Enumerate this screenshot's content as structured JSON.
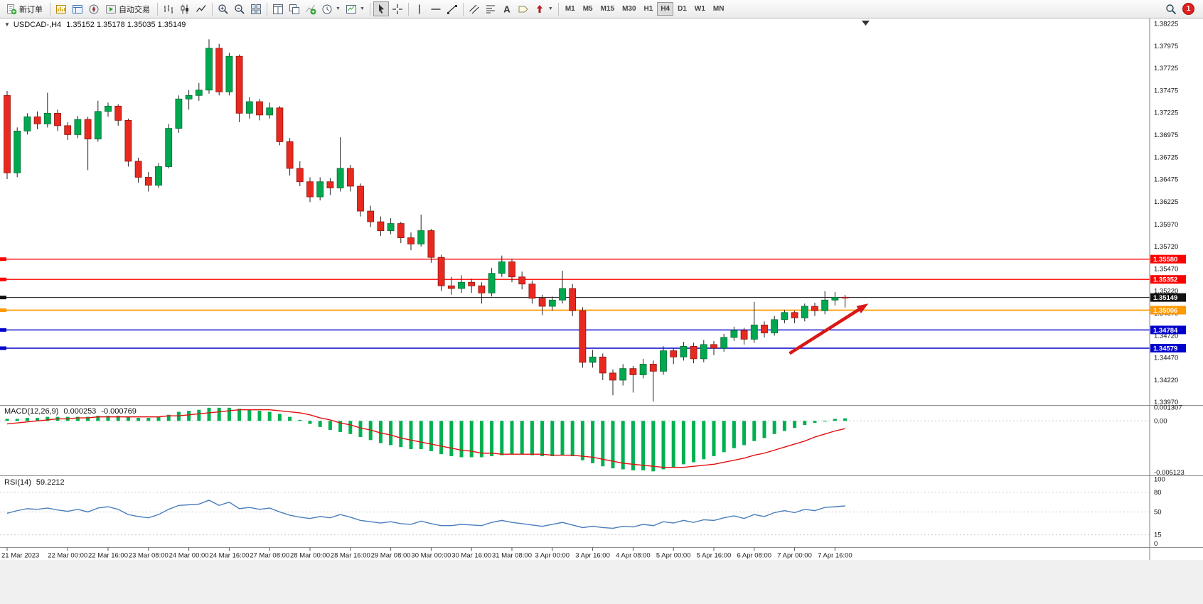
{
  "toolbar": {
    "new_order_label": "新订单",
    "auto_trading_label": "自动交易",
    "timeframes": [
      "M1",
      "M5",
      "M15",
      "M30",
      "H1",
      "H4",
      "D1",
      "W1",
      "MN"
    ],
    "active_timeframe": "H4",
    "notification_count": "1"
  },
  "chart_header": {
    "symbol_period": "USDCAD-,H4",
    "ohlc": "1.35152 1.35178 1.35035 1.35149"
  },
  "macd_panel": {
    "label": "MACD(12,26,9)",
    "value_main": "0.000253",
    "value_signal": "-0.000769",
    "axis": [
      {
        "label": "0.001307",
        "value": 0.001307
      },
      {
        "label": "0.00",
        "value": 0
      },
      {
        "label": "-0.005123",
        "value": -0.005123
      }
    ]
  },
  "rsi_panel": {
    "label": "RSI(14)",
    "value": "59.2212",
    "levels": [
      80,
      50,
      15
    ],
    "axis": [
      {
        "label": "100",
        "value": 100
      },
      {
        "label": "80",
        "value": 80
      },
      {
        "label": "50",
        "value": 50
      },
      {
        "label": "15",
        "value": 15
      },
      {
        "label": "0",
        "value": 0
      }
    ]
  },
  "price_axis": {
    "ticks": [
      "1.38225",
      "1.37975",
      "1.37725",
      "1.37475",
      "1.37225",
      "1.36975",
      "1.36725",
      "1.36475",
      "1.36225",
      "1.35970",
      "1.35720",
      "1.35470",
      "1.35220",
      "1.34970",
      "1.34720",
      "1.34470",
      "1.34220",
      "1.33970"
    ]
  },
  "price_lines": [
    {
      "label": "1.35580",
      "price": 1.3558,
      "color": "#ff0000",
      "width": 1.4
    },
    {
      "label": "1.35352",
      "price": 1.35352,
      "color": "#ff0000",
      "width": 1.4
    },
    {
      "label": "1.35149",
      "price": 1.35149,
      "color": "#111111",
      "width": 1,
      "current": true
    },
    {
      "label": "1.35006",
      "price": 1.35006,
      "color": "#ff9900",
      "width": 1.8
    },
    {
      "label": "1.34784",
      "price": 1.34784,
      "color": "#0000cc",
      "width": 1.4
    },
    {
      "label": "1.34579",
      "price": 1.34579,
      "color": "#0000cc",
      "width": 1.4
    }
  ],
  "time_axis": {
    "labels": [
      {
        "text": "21 Mar 2023",
        "idx": 0
      },
      {
        "text": "22 Mar 00:00",
        "idx": 6
      },
      {
        "text": "22 Mar 16:00",
        "idx": 10
      },
      {
        "text": "23 Mar 08:00",
        "idx": 14
      },
      {
        "text": "24 Mar 00:00",
        "idx": 18
      },
      {
        "text": "24 Mar 16:00",
        "idx": 22
      },
      {
        "text": "27 Mar 08:00",
        "idx": 26
      },
      {
        "text": "28 Mar 00:00",
        "idx": 30
      },
      {
        "text": "28 Mar 16:00",
        "idx": 34
      },
      {
        "text": "29 Mar 08:00",
        "idx": 38
      },
      {
        "text": "30 Mar 00:00",
        "idx": 42
      },
      {
        "text": "30 Mar 16:00",
        "idx": 46
      },
      {
        "text": "31 Mar 08:00",
        "idx": 50
      },
      {
        "text": "3 Apr 00:00",
        "idx": 54
      },
      {
        "text": "3 Apr 16:00",
        "idx": 58
      },
      {
        "text": "4 Apr 08:00",
        "idx": 62
      },
      {
        "text": "5 Apr 00:00",
        "idx": 66
      },
      {
        "text": "5 Apr 16:00",
        "idx": 70
      },
      {
        "text": "6 Apr 08:00",
        "idx": 74
      },
      {
        "text": "7 Apr 00:00",
        "idx": 78
      },
      {
        "text": "7 Apr 16:00",
        "idx": 82
      }
    ]
  },
  "colors": {
    "bull": "#00a94f",
    "bull_border": "#006b31",
    "bear": "#e8291f",
    "bear_border": "#8f130c",
    "wick": "#222222",
    "macd_hist": "#00b050",
    "macd_signal": "#e01010",
    "rsi_line": "#4a7ebb",
    "arrow": "#d91717"
  },
  "chart_data": {
    "type": "candlestick",
    "symbol": "USDCAD",
    "timeframe": "H4",
    "ohlc_current": {
      "open": 1.35152,
      "high": 1.35178,
      "low": 1.35035,
      "close": 1.35149
    },
    "candles": [
      [
        1.3742,
        1.3747,
        1.3648,
        1.3655
      ],
      [
        1.3655,
        1.3706,
        1.365,
        1.3702
      ],
      [
        1.3702,
        1.3722,
        1.3698,
        1.3718
      ],
      [
        1.3718,
        1.3724,
        1.3704,
        1.371
      ],
      [
        1.371,
        1.3745,
        1.3706,
        1.3722
      ],
      [
        1.3722,
        1.3726,
        1.3702,
        1.3708
      ],
      [
        1.3708,
        1.3712,
        1.3692,
        1.3698
      ],
      [
        1.3698,
        1.3719,
        1.3694,
        1.3715
      ],
      [
        1.3715,
        1.3718,
        1.3658,
        1.3693
      ],
      [
        1.3693,
        1.3736,
        1.369,
        1.3724
      ],
      [
        1.3724,
        1.3734,
        1.3718,
        1.373
      ],
      [
        1.373,
        1.3732,
        1.3708,
        1.3714
      ],
      [
        1.3714,
        1.3716,
        1.3662,
        1.3668
      ],
      [
        1.3668,
        1.3672,
        1.3644,
        1.365
      ],
      [
        1.365,
        1.3656,
        1.3634,
        1.3641
      ],
      [
        1.3641,
        1.3666,
        1.3638,
        1.3662
      ],
      [
        1.3662,
        1.371,
        1.366,
        1.3705
      ],
      [
        1.3705,
        1.3742,
        1.37,
        1.3738
      ],
      [
        1.3738,
        1.3748,
        1.3726,
        1.3742
      ],
      [
        1.3742,
        1.3756,
        1.3736,
        1.3748
      ],
      [
        1.3748,
        1.3805,
        1.3744,
        1.3795
      ],
      [
        1.3795,
        1.38,
        1.3742,
        1.3746
      ],
      [
        1.3746,
        1.379,
        1.3742,
        1.3786
      ],
      [
        1.3786,
        1.3788,
        1.3712,
        1.3722
      ],
      [
        1.3722,
        1.374,
        1.3716,
        1.3735
      ],
      [
        1.3735,
        1.3738,
        1.3714,
        1.372
      ],
      [
        1.372,
        1.3734,
        1.3716,
        1.3728
      ],
      [
        1.3728,
        1.373,
        1.3686,
        1.369
      ],
      [
        1.369,
        1.3694,
        1.3652,
        1.366
      ],
      [
        1.366,
        1.3668,
        1.364,
        1.3645
      ],
      [
        1.3645,
        1.365,
        1.3622,
        1.3628
      ],
      [
        1.3628,
        1.365,
        1.3624,
        1.3645
      ],
      [
        1.3645,
        1.3649,
        1.363,
        1.3638
      ],
      [
        1.3638,
        1.3695,
        1.3634,
        1.366
      ],
      [
        1.366,
        1.3664,
        1.3634,
        1.364
      ],
      [
        1.364,
        1.3643,
        1.3606,
        1.3612
      ],
      [
        1.3612,
        1.3618,
        1.3594,
        1.36
      ],
      [
        1.36,
        1.3606,
        1.3584,
        1.359
      ],
      [
        1.359,
        1.3604,
        1.3586,
        1.3598
      ],
      [
        1.3598,
        1.36,
        1.3576,
        1.3582
      ],
      [
        1.3582,
        1.3588,
        1.3568,
        1.3575
      ],
      [
        1.3575,
        1.3608,
        1.3572,
        1.359
      ],
      [
        1.359,
        1.3592,
        1.3554,
        1.356
      ],
      [
        1.356,
        1.3563,
        1.3522,
        1.3528
      ],
      [
        1.3528,
        1.3538,
        1.3518,
        1.3525
      ],
      [
        1.3525,
        1.354,
        1.352,
        1.3532
      ],
      [
        1.3532,
        1.3536,
        1.352,
        1.3528
      ],
      [
        1.3528,
        1.3532,
        1.3508,
        1.352
      ],
      [
        1.352,
        1.3548,
        1.3516,
        1.3542
      ],
      [
        1.3542,
        1.3562,
        1.3538,
        1.3555
      ],
      [
        1.3555,
        1.3558,
        1.3532,
        1.3538
      ],
      [
        1.3538,
        1.3544,
        1.3524,
        1.353
      ],
      [
        1.353,
        1.3534,
        1.3508,
        1.3514
      ],
      [
        1.3514,
        1.3518,
        1.3495,
        1.3505
      ],
      [
        1.3505,
        1.3516,
        1.35,
        1.3512
      ],
      [
        1.3512,
        1.3545,
        1.3508,
        1.3525
      ],
      [
        1.3525,
        1.353,
        1.3494,
        1.35
      ],
      [
        1.35,
        1.3504,
        1.3436,
        1.3442
      ],
      [
        1.3442,
        1.3456,
        1.3436,
        1.3448
      ],
      [
        1.3448,
        1.3452,
        1.3422,
        1.343
      ],
      [
        1.343,
        1.3434,
        1.3405,
        1.3422
      ],
      [
        1.3422,
        1.344,
        1.3416,
        1.3435
      ],
      [
        1.3435,
        1.3438,
        1.3408,
        1.3428
      ],
      [
        1.3428,
        1.3446,
        1.3424,
        1.344
      ],
      [
        1.344,
        1.3444,
        1.3398,
        1.3432
      ],
      [
        1.3432,
        1.346,
        1.3428,
        1.3455
      ],
      [
        1.3455,
        1.3458,
        1.344,
        1.3448
      ],
      [
        1.3448,
        1.3465,
        1.3444,
        1.346
      ],
      [
        1.346,
        1.3464,
        1.3441,
        1.3446
      ],
      [
        1.3446,
        1.3467,
        1.3442,
        1.3462
      ],
      [
        1.3462,
        1.3466,
        1.345,
        1.3458
      ],
      [
        1.3458,
        1.3474,
        1.3454,
        1.347
      ],
      [
        1.347,
        1.3482,
        1.3466,
        1.3478
      ],
      [
        1.3478,
        1.3481,
        1.3462,
        1.3468
      ],
      [
        1.3468,
        1.351,
        1.3464,
        1.3484
      ],
      [
        1.3484,
        1.3488,
        1.347,
        1.3475
      ],
      [
        1.3475,
        1.3494,
        1.3472,
        1.349
      ],
      [
        1.349,
        1.3501,
        1.3486,
        1.3498
      ],
      [
        1.3498,
        1.35,
        1.3486,
        1.3492
      ],
      [
        1.3492,
        1.3508,
        1.3488,
        1.3505
      ],
      [
        1.3505,
        1.3509,
        1.3494,
        1.35
      ],
      [
        1.35,
        1.3522,
        1.3496,
        1.3512
      ],
      [
        1.3512,
        1.3521,
        1.3506,
        1.3515
      ],
      [
        1.35152,
        1.35178,
        1.35035,
        1.35149
      ]
    ],
    "macd_hist": [
      0.0002,
      0.0002,
      0.0003,
      0.0003,
      0.0004,
      0.0004,
      0.0004,
      0.0004,
      0.0004,
      0.0005,
      0.0005,
      0.0005,
      0.0004,
      0.0003,
      0.0003,
      0.0004,
      0.0006,
      0.0009,
      0.001,
      0.0011,
      0.0013,
      0.0013,
      0.0013,
      0.0012,
      0.0011,
      0.001,
      0.0009,
      0.0007,
      0.0004,
      0.0001,
      -0.0003,
      -0.0006,
      -0.0009,
      -0.0011,
      -0.0013,
      -0.0016,
      -0.0019,
      -0.0022,
      -0.0024,
      -0.0026,
      -0.0028,
      -0.0028,
      -0.003,
      -0.0033,
      -0.0035,
      -0.0036,
      -0.0036,
      -0.0036,
      -0.0035,
      -0.0034,
      -0.0033,
      -0.0033,
      -0.0034,
      -0.0035,
      -0.0035,
      -0.0034,
      -0.0035,
      -0.0039,
      -0.0042,
      -0.0045,
      -0.0047,
      -0.0048,
      -0.0049,
      -0.0049,
      -0.005,
      -0.0048,
      -0.0046,
      -0.0043,
      -0.0041,
      -0.0038,
      -0.0035,
      -0.0031,
      -0.0027,
      -0.0024,
      -0.002,
      -0.0017,
      -0.0013,
      -0.001,
      -0.0007,
      -0.0004,
      -0.0002,
      0.0,
      0.0002,
      0.000253
    ],
    "macd_signal": [
      -0.0003,
      -0.0002,
      -0.0001,
      0.0,
      0.0001,
      0.0002,
      0.0002,
      0.0003,
      0.0003,
      0.0004,
      0.0004,
      0.0004,
      0.0004,
      0.0004,
      0.0004,
      0.0004,
      0.0005,
      0.0005,
      0.0006,
      0.0007,
      0.0008,
      0.0009,
      0.001,
      0.0011,
      0.0011,
      0.0011,
      0.0011,
      0.001,
      0.0009,
      0.0008,
      0.0006,
      0.0003,
      0.0001,
      -0.0002,
      -0.0004,
      -0.0007,
      -0.0009,
      -0.0012,
      -0.0014,
      -0.0017,
      -0.0019,
      -0.0021,
      -0.0023,
      -0.0025,
      -0.0027,
      -0.0029,
      -0.003,
      -0.0032,
      -0.0032,
      -0.0033,
      -0.0033,
      -0.0033,
      -0.0033,
      -0.0033,
      -0.0034,
      -0.0034,
      -0.0034,
      -0.0035,
      -0.0036,
      -0.0038,
      -0.004,
      -0.0042,
      -0.0043,
      -0.0044,
      -0.0045,
      -0.0046,
      -0.0046,
      -0.0046,
      -0.0045,
      -0.0044,
      -0.0043,
      -0.0041,
      -0.0039,
      -0.0037,
      -0.0034,
      -0.0032,
      -0.0029,
      -0.0026,
      -0.0023,
      -0.002,
      -0.0016,
      -0.0013,
      -0.001,
      -0.000769
    ],
    "rsi": [
      48,
      52,
      55,
      54,
      56,
      53,
      51,
      54,
      50,
      56,
      58,
      54,
      46,
      43,
      41,
      46,
      54,
      60,
      61,
      62,
      68,
      60,
      65,
      55,
      57,
      54,
      56,
      50,
      45,
      42,
      40,
      43,
      41,
      46,
      42,
      37,
      35,
      33,
      35,
      32,
      31,
      36,
      32,
      29,
      29,
      31,
      30,
      29,
      34,
      37,
      34,
      32,
      30,
      28,
      31,
      34,
      30,
      26,
      28,
      26,
      25,
      28,
      27,
      31,
      29,
      35,
      33,
      37,
      34,
      38,
      37,
      41,
      44,
      40,
      46,
      43,
      49,
      52,
      49,
      54,
      52,
      57,
      58,
      59.2212
    ],
    "arrow": {
      "from": {
        "idx": 77.5,
        "price": 1.3452
      },
      "to": {
        "idx": 85.3,
        "price": 1.3508
      }
    }
  }
}
